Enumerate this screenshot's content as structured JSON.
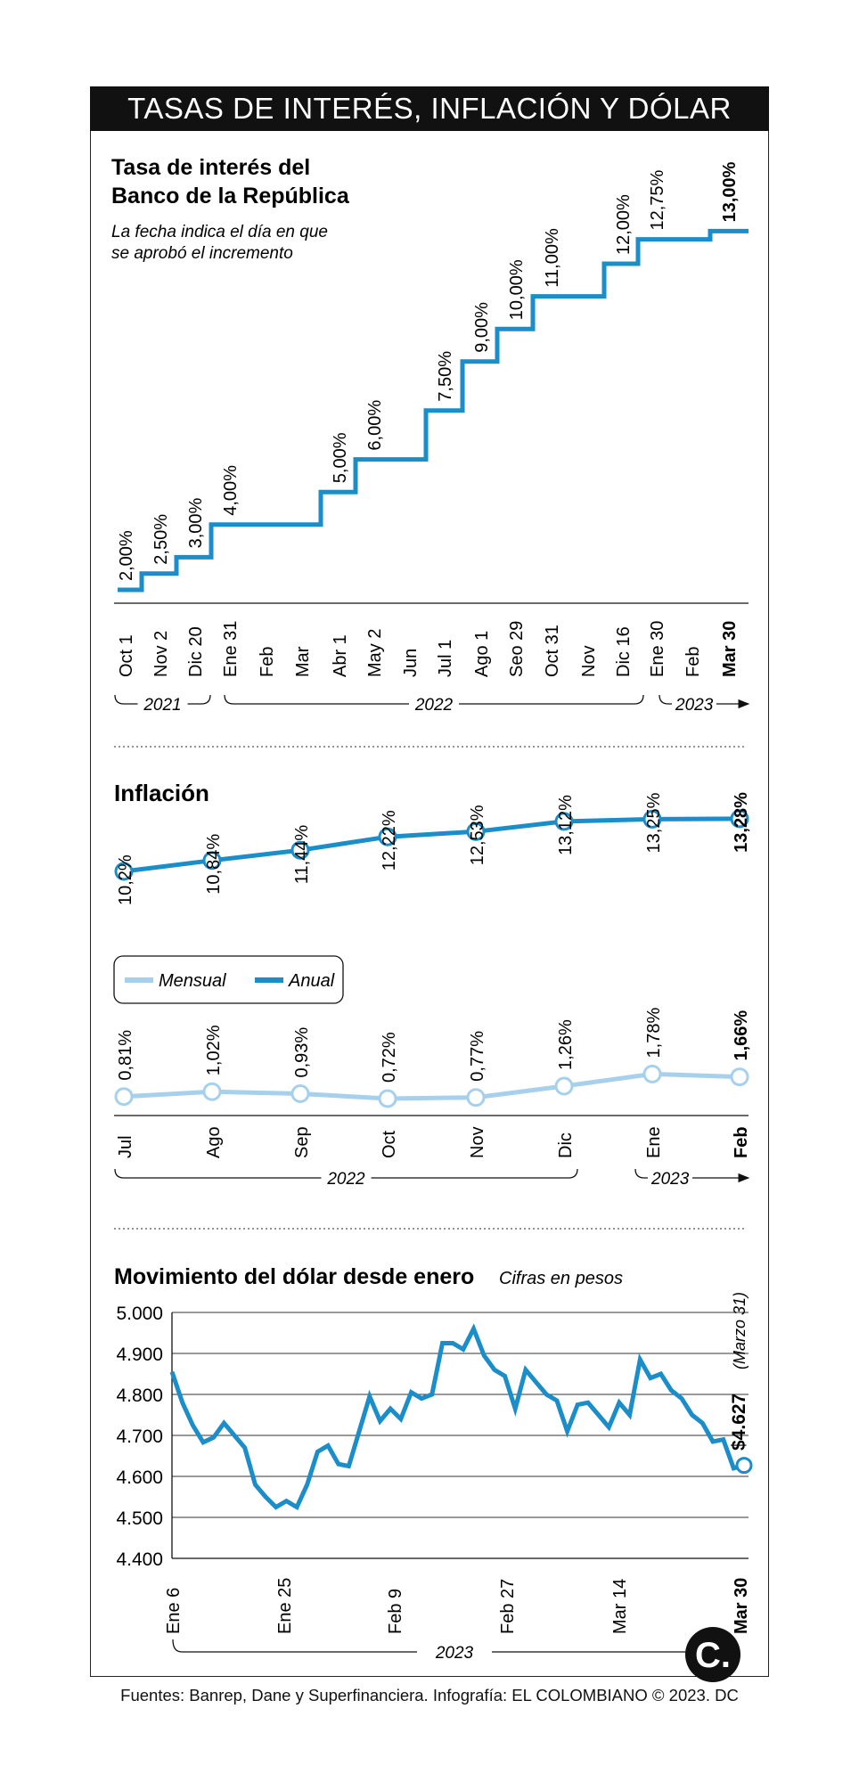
{
  "banner": "TASAS DE INTERÉS, INFLACIÓN Y DÓLAR",
  "source": "Fuentes: Banrep, Dane y Superfinanciera. Infografía: EL COLOMBIANO © 2023. DC",
  "logo_text": "C.",
  "colors": {
    "dark_blue": "#1b8dc9",
    "light_blue": "#a6d0ec",
    "black": "#111111"
  },
  "chart_data": [
    {
      "type": "line",
      "title": "Tasa de interés del Banco de la República",
      "subtitle": "La fecha indica el día en que se aprobó el incremento",
      "step": true,
      "x_ticks": [
        "Oct 1",
        "Nov 2",
        "Dic 20",
        "Ene 31",
        "Feb",
        "Mar",
        "Abr 1",
        "May 2",
        "Jun",
        "Jul 1",
        "Ago 1",
        "Seo 29",
        "Oct 31",
        "Nov",
        "Dic 16",
        "Ene 30",
        "Feb",
        "Mar 30"
      ],
      "values": [
        2.0,
        2.5,
        3.0,
        4.0,
        4.0,
        4.0,
        5.0,
        6.0,
        6.0,
        7.5,
        9.0,
        10.0,
        11.0,
        11.0,
        12.0,
        12.75,
        12.75,
        13.0
      ],
      "value_labels": [
        "2,00%",
        "2,50%",
        "3,00%",
        "4,00%",
        "",
        "",
        "5,00%",
        "6,00%",
        "",
        "7,50%",
        "9,00%",
        "10,00%",
        "11,00%",
        "",
        "12,00%",
        "12,75%",
        "",
        "13,00%"
      ],
      "year_labels": [
        "2021",
        "2022",
        "2023"
      ]
    },
    {
      "type": "line",
      "title": "Inflación",
      "categories": [
        "Jul",
        "Ago",
        "Sep",
        "Oct",
        "Nov",
        "Dic",
        "Ene",
        "Feb"
      ],
      "series": [
        {
          "name": "Mensual",
          "values": [
            0.81,
            1.02,
            0.93,
            0.72,
            0.77,
            1.26,
            1.78,
            1.66
          ],
          "labels": [
            "0,81%",
            "1,02%",
            "0,93%",
            "0,72%",
            "0,77%",
            "1,26%",
            "1,78%",
            "1,66%"
          ]
        },
        {
          "name": "Anual",
          "values": [
            10.2,
            10.84,
            11.44,
            12.22,
            12.53,
            13.12,
            13.25,
            13.28
          ],
          "labels": [
            "10,2%",
            "10,84%",
            "11,44%",
            "12,22%",
            "12,53%",
            "13,12%",
            "13,25%",
            "13,28%"
          ]
        }
      ],
      "year_labels": [
        "2022",
        "2023"
      ]
    },
    {
      "type": "line",
      "title": "Movimiento del dólar desde enero",
      "subtitle": "Cifras en pesos",
      "ylim": [
        4400,
        5000
      ],
      "y_ticks": [
        "4.400",
        "4.500",
        "4.600",
        "4.700",
        "4.800",
        "4.900",
        "5.000"
      ],
      "x_ticks": [
        "Ene 6",
        "Ene 25",
        "Feb 9",
        "Feb 27",
        "Mar 14",
        "Mar 30"
      ],
      "values": [
        4855,
        4780,
        4725,
        4683,
        4695,
        4730,
        4700,
        4670,
        4580,
        4550,
        4525,
        4540,
        4525,
        4580,
        4660,
        4675,
        4630,
        4625,
        4710,
        4795,
        4735,
        4765,
        4740,
        4805,
        4790,
        4800,
        4925,
        4925,
        4910,
        4960,
        4895,
        4860,
        4845,
        4765,
        4860,
        4830,
        4800,
        4785,
        4710,
        4775,
        4780,
        4750,
        4720,
        4780,
        4750,
        4885,
        4840,
        4850,
        4810,
        4790,
        4750,
        4730,
        4685,
        4690,
        4620,
        4627
      ],
      "last_label": "$4.627",
      "last_note": "(Marzo 31)",
      "year_label": "2023"
    }
  ]
}
